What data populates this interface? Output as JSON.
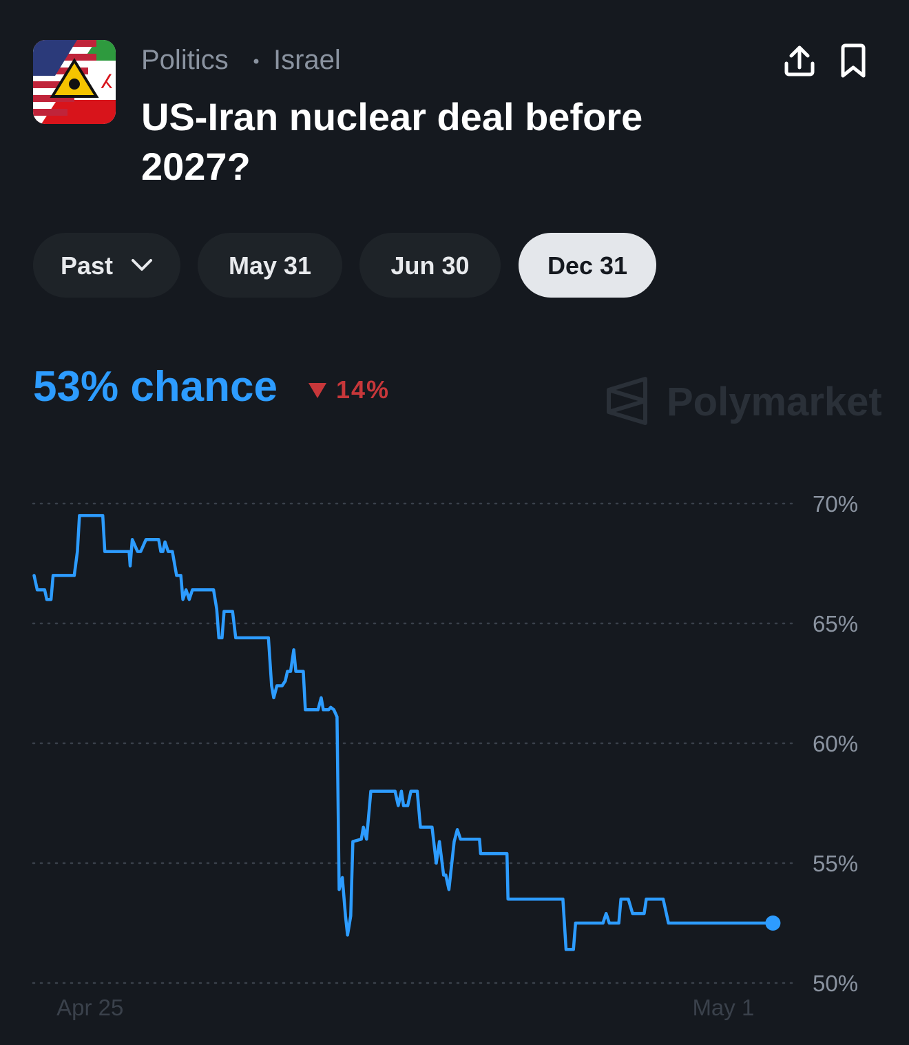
{
  "header": {
    "category": "Politics",
    "subcategory": "Israel",
    "title_lines": [
      "US-Iran nuclear deal before",
      "2027?"
    ]
  },
  "tabs": {
    "items": [
      "Past",
      "May 31",
      "Jun 30",
      "Dec 31"
    ],
    "selected_index": 3
  },
  "summary": {
    "chance": "53% chance",
    "change": "14%",
    "brand": "Polymarket"
  },
  "chart_data": {
    "type": "line",
    "color": "#2d9cff",
    "x": [
      -0.53,
      -0.5,
      -0.43,
      -0.41,
      -0.37,
      -0.35,
      -0.15,
      -0.12,
      -0.1,
      0.12,
      0.14,
      0.37,
      0.38,
      0.4,
      0.45,
      0.48,
      0.53,
      0.65,
      0.67,
      0.69,
      0.71,
      0.74,
      0.78,
      0.82,
      0.86,
      0.88,
      0.91,
      0.94,
      0.97,
      1.17,
      1.2,
      1.22,
      1.25,
      1.27,
      1.35,
      1.38,
      1.69,
      1.72,
      1.74,
      1.77,
      1.82,
      1.85,
      1.87,
      1.9,
      1.93,
      1.95,
      2.02,
      2.04,
      2.16,
      2.19,
      2.21,
      2.26,
      2.28,
      2.31,
      2.34,
      2.36,
      2.39,
      2.42,
      2.44,
      2.47,
      2.49,
      2.57,
      2.59,
      2.62,
      2.66,
      2.89,
      2.92,
      2.95,
      2.97,
      3.01,
      3.04,
      3.1,
      3.13,
      3.24,
      3.28,
      3.31,
      3.35,
      3.37,
      3.4,
      3.45,
      3.48,
      3.51,
      3.69,
      3.7,
      3.95,
      3.96,
      4.48,
      4.51,
      4.58,
      4.6,
      4.86,
      4.89,
      4.92,
      5.01,
      5.03,
      5.1,
      5.14,
      5.25,
      5.27,
      5.43,
      5.48,
      6.47
    ],
    "values": [
      67.0,
      66.4,
      66.4,
      66.0,
      66.0,
      67.0,
      67.0,
      68.0,
      69.5,
      69.5,
      68.0,
      68.0,
      67.4,
      68.5,
      68.0,
      68.0,
      68.5,
      68.5,
      68.0,
      68.0,
      68.4,
      68.0,
      68.0,
      67.0,
      67.0,
      66.0,
      66.4,
      66.0,
      66.4,
      66.4,
      65.6,
      64.4,
      64.4,
      65.5,
      65.5,
      64.4,
      64.4,
      62.4,
      61.9,
      62.4,
      62.4,
      62.6,
      63.0,
      63.0,
      63.9,
      63.0,
      63.0,
      61.4,
      61.4,
      61.9,
      61.4,
      61.4,
      61.5,
      61.4,
      61.1,
      53.9,
      54.4,
      52.8,
      52.0,
      52.8,
      55.9,
      56.0,
      56.5,
      56.0,
      58.0,
      58.0,
      57.4,
      58.0,
      57.4,
      57.4,
      58.0,
      58.0,
      56.5,
      56.5,
      55.0,
      55.9,
      54.5,
      54.5,
      53.9,
      55.9,
      56.4,
      56.0,
      56.0,
      55.4,
      55.4,
      53.5,
      53.5,
      51.4,
      51.4,
      52.5,
      52.5,
      52.9,
      52.5,
      52.5,
      53.5,
      53.5,
      52.9,
      52.9,
      53.5,
      53.5,
      52.5,
      52.5
    ],
    "xlim": [
      -0.54,
      6.65
    ],
    "xticks": [
      {
        "value": 0,
        "label": "Apr 25"
      },
      {
        "value": 6,
        "label": "May 1"
      }
    ],
    "ylim": [
      50,
      70
    ],
    "yticks": [
      {
        "value": 50,
        "label": "50%"
      },
      {
        "value": 55,
        "label": "55%"
      },
      {
        "value": 60,
        "label": "60%"
      },
      {
        "value": 65,
        "label": "65%"
      },
      {
        "value": 70,
        "label": "70%"
      }
    ],
    "grid": true
  }
}
